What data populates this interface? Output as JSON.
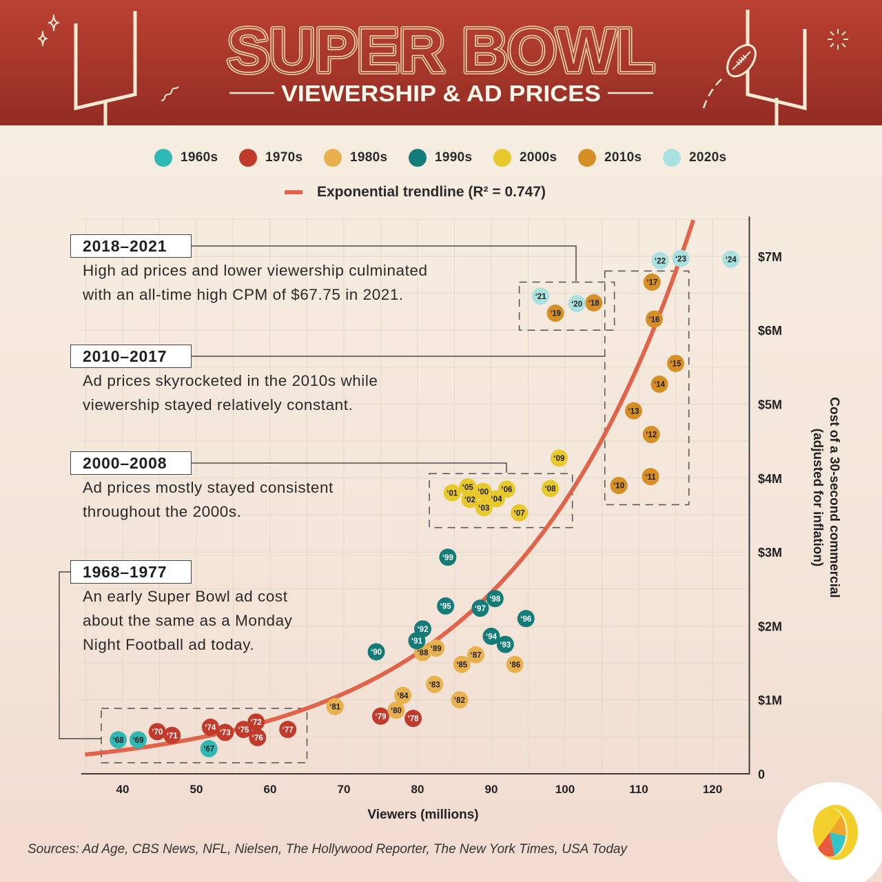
{
  "header": {
    "title": "SUPER BOWL",
    "subtitle": "VIEWERSHIP & AD PRICES"
  },
  "legend": {
    "items": [
      {
        "label": "1960s",
        "color": "#2fb8b4"
      },
      {
        "label": "1970s",
        "color": "#c13b2d"
      },
      {
        "label": "1980s",
        "color": "#e9b14d"
      },
      {
        "label": "1990s",
        "color": "#137b78"
      },
      {
        "label": "2000s",
        "color": "#e7c92c"
      },
      {
        "label": "2010s",
        "color": "#d68f24"
      },
      {
        "label": "2020s",
        "color": "#a8e1e0"
      }
    ],
    "trendline_label": "Exponential trendline (R² = 0.747)",
    "trendline_color": "#e0634a"
  },
  "chart_data": {
    "type": "scatter",
    "title": "Super Bowl Viewership & Ad Prices",
    "xlabel": "Viewers (millions)",
    "ylabel": "Cost of a 30-second commercial (adjusted for inflation)",
    "ylabel_lines": [
      "Cost of a 30-second commercial",
      "(adjusted for inflation)"
    ],
    "xlim": [
      34.4,
      125
    ],
    "ylim": [
      0,
      7.5
    ],
    "xticks": [
      40,
      50,
      60,
      70,
      80,
      90,
      100,
      110,
      120
    ],
    "xtick_labels": [
      "40",
      "50",
      "60",
      "70",
      "80",
      "90",
      "100",
      "110",
      "120"
    ],
    "yticks": [
      0,
      1,
      2,
      3,
      4,
      5,
      6,
      7
    ],
    "ytick_labels": [
      "0",
      "$1M",
      "$2M",
      "$3M",
      "$4M",
      "$5M",
      "$6M",
      "$7M"
    ],
    "yunit": "millions of USD",
    "grid": {
      "on": true,
      "x_start": 35,
      "x_step": 5,
      "y_step": 0.5
    },
    "legend_position": "top-center",
    "series": [
      {
        "name": "1960s",
        "color": "#2fb8b4",
        "label_color": "#1d1d1d",
        "points": [
          {
            "label": "‘67",
            "x": 51.7,
            "y": 0.34
          },
          {
            "label": "‘68",
            "x": 39.4,
            "y": 0.46
          },
          {
            "label": "‘69",
            "x": 42.1,
            "y": 0.46
          }
        ]
      },
      {
        "name": "1970s",
        "color": "#c13b2d",
        "label_color": "#ffffff",
        "points": [
          {
            "label": "‘70",
            "x": 44.7,
            "y": 0.57
          },
          {
            "label": "‘71",
            "x": 46.7,
            "y": 0.52
          },
          {
            "label": "‘72",
            "x": 58.1,
            "y": 0.7
          },
          {
            "label": "‘73",
            "x": 53.9,
            "y": 0.56
          },
          {
            "label": "‘74",
            "x": 51.9,
            "y": 0.63
          },
          {
            "label": "‘75",
            "x": 56.4,
            "y": 0.6
          },
          {
            "label": "‘76",
            "x": 58.3,
            "y": 0.49
          },
          {
            "label": "‘77",
            "x": 62.4,
            "y": 0.6
          },
          {
            "label": "‘78",
            "x": 79.4,
            "y": 0.75
          },
          {
            "label": "‘79",
            "x": 75.0,
            "y": 0.78
          }
        ]
      },
      {
        "name": "1980s",
        "color": "#e9b14d",
        "label_color": "#1d1d1d",
        "points": [
          {
            "label": "‘80",
            "x": 77.1,
            "y": 0.86
          },
          {
            "label": "‘81",
            "x": 68.8,
            "y": 0.91
          },
          {
            "label": "‘82",
            "x": 85.7,
            "y": 1.0
          },
          {
            "label": "‘83",
            "x": 82.3,
            "y": 1.21
          },
          {
            "label": "‘84",
            "x": 78.0,
            "y": 1.06
          },
          {
            "label": "‘85",
            "x": 86.0,
            "y": 1.48
          },
          {
            "label": "‘86",
            "x": 93.2,
            "y": 1.48
          },
          {
            "label": "‘87",
            "x": 87.9,
            "y": 1.61
          },
          {
            "label": "‘88",
            "x": 80.7,
            "y": 1.64
          },
          {
            "label": "‘89",
            "x": 82.5,
            "y": 1.7
          }
        ]
      },
      {
        "name": "1990s",
        "color": "#137b78",
        "label_color": "#ffffff",
        "points": [
          {
            "label": "‘90",
            "x": 74.4,
            "y": 1.65
          },
          {
            "label": "‘91",
            "x": 79.9,
            "y": 1.8
          },
          {
            "label": "‘92",
            "x": 80.7,
            "y": 1.96
          },
          {
            "label": "‘93",
            "x": 91.9,
            "y": 1.75
          },
          {
            "label": "‘94",
            "x": 90.0,
            "y": 1.86
          },
          {
            "label": "‘95",
            "x": 83.8,
            "y": 2.27
          },
          {
            "label": "‘96",
            "x": 94.7,
            "y": 2.1
          },
          {
            "label": "‘97",
            "x": 88.5,
            "y": 2.24
          },
          {
            "label": "‘98",
            "x": 90.5,
            "y": 2.37
          },
          {
            "label": "‘99",
            "x": 84.1,
            "y": 2.93
          }
        ]
      },
      {
        "name": "2000s",
        "color": "#e7c92c",
        "label_color": "#1d1d1d",
        "points": [
          {
            "label": "‘00",
            "x": 88.9,
            "y": 3.82
          },
          {
            "label": "‘01",
            "x": 84.7,
            "y": 3.8
          },
          {
            "label": "‘02",
            "x": 87.1,
            "y": 3.71
          },
          {
            "label": "‘03",
            "x": 89.0,
            "y": 3.6
          },
          {
            "label": "‘04",
            "x": 90.7,
            "y": 3.72
          },
          {
            "label": "‘05",
            "x": 86.8,
            "y": 3.88
          },
          {
            "label": "‘06",
            "x": 92.1,
            "y": 3.85
          },
          {
            "label": "‘07",
            "x": 93.8,
            "y": 3.53
          },
          {
            "label": "‘08",
            "x": 98.0,
            "y": 3.86
          },
          {
            "label": "‘09",
            "x": 99.2,
            "y": 4.27
          }
        ]
      },
      {
        "name": "2010s",
        "color": "#d68f24",
        "label_color": "#1d1d1d",
        "points": [
          {
            "label": "‘10",
            "x": 107.3,
            "y": 3.9
          },
          {
            "label": "‘11",
            "x": 111.6,
            "y": 4.02
          },
          {
            "label": "‘12",
            "x": 111.7,
            "y": 4.59
          },
          {
            "label": "‘13",
            "x": 109.3,
            "y": 4.91
          },
          {
            "label": "‘14",
            "x": 112.8,
            "y": 5.27
          },
          {
            "label": "‘15",
            "x": 115.0,
            "y": 5.55
          },
          {
            "label": "‘16",
            "x": 112.1,
            "y": 6.15
          },
          {
            "label": "‘17",
            "x": 111.8,
            "y": 6.65
          },
          {
            "label": "‘18",
            "x": 103.9,
            "y": 6.37
          },
          {
            "label": "‘19",
            "x": 98.7,
            "y": 6.23
          }
        ]
      },
      {
        "name": "2020s",
        "color": "#a8e1e0",
        "label_color": "#1d1d1d",
        "points": [
          {
            "label": "‘20",
            "x": 101.6,
            "y": 6.36
          },
          {
            "label": "‘21",
            "x": 96.7,
            "y": 6.46
          },
          {
            "label": "‘22",
            "x": 112.9,
            "y": 6.94
          },
          {
            "label": "‘23",
            "x": 115.7,
            "y": 6.97
          },
          {
            "label": "‘24",
            "x": 122.5,
            "y": 6.96
          }
        ]
      }
    ],
    "trendline": {
      "type": "exponential",
      "equation": "y = a·e^(b·x)",
      "a": 0.0627,
      "b": 0.04074,
      "r2": 0.747,
      "x_range": [
        34.9,
        117.6
      ],
      "color": "#e0634a"
    },
    "annotations": [
      {
        "title": "2018–2021",
        "lines": [
          "High ad prices and lower viewership culminated",
          "with an all-time high CPM of $67.75 in 2021."
        ],
        "region": {
          "x": [
            93.8,
            106.7
          ],
          "y": [
            6.0,
            6.65
          ]
        }
      },
      {
        "title": "2010–2017",
        "lines": [
          "Ad prices skyrocketed in the 2010s while",
          "viewership stayed relatively constant."
        ],
        "region": {
          "x": [
            105.4,
            116.8
          ],
          "y": [
            3.64,
            6.8
          ]
        }
      },
      {
        "title": "2000–2008",
        "lines": [
          "Ad prices mostly stayed consistent",
          "throughout the 2000s."
        ],
        "region": {
          "x": [
            81.6,
            101.0
          ],
          "y": [
            3.33,
            4.06
          ]
        }
      },
      {
        "title": "1968–1977",
        "lines": [
          "An early Super Bowl ad cost",
          "about the same as a Monday",
          "Night Football ad today."
        ],
        "region": {
          "x": [
            37.1,
            65.0
          ],
          "y": [
            0.15,
            0.885
          ]
        }
      }
    ]
  },
  "footer": {
    "sources": "Sources: Ad Age, CBS News, NFL, Nielsen, The Hollywood Reporter, The New York Times, USA Today",
    "logo_icon": "lemon-logo-icon"
  }
}
